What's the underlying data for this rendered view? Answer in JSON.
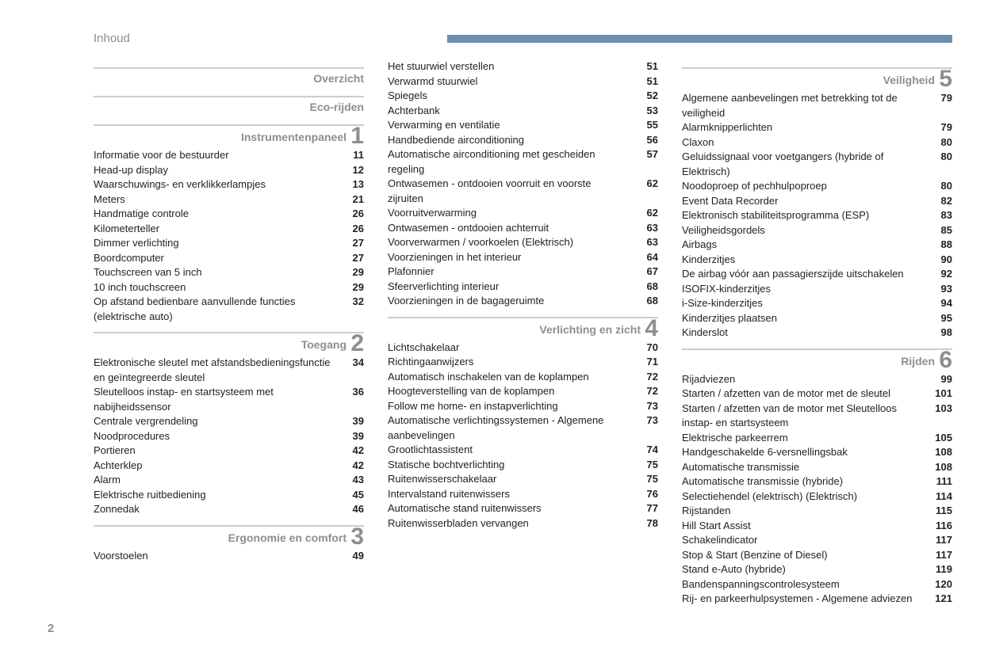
{
  "header": {
    "title": "Inhoud"
  },
  "page_number": "2",
  "colors": {
    "header_bar": "#6a8fb0",
    "muted": "#8a8f94",
    "rule": "#cccccc",
    "text": "#222222"
  },
  "col1": {
    "sections": [
      {
        "title": "Overzicht",
        "num": "",
        "items": []
      },
      {
        "title": "Eco-rijden",
        "num": "",
        "items": []
      },
      {
        "title": "Instrumentenpaneel",
        "num": "1",
        "items": [
          {
            "label": "Informatie voor de bestuurder",
            "pg": "11"
          },
          {
            "label": "Head-up display",
            "pg": "12"
          },
          {
            "label": "Waarschuwings- en verklikkerlampjes",
            "pg": "13"
          },
          {
            "label": "Meters",
            "pg": "21"
          },
          {
            "label": "Handmatige controle",
            "pg": "26"
          },
          {
            "label": "Kilometerteller",
            "pg": "26"
          },
          {
            "label": "Dimmer verlichting",
            "pg": "27"
          },
          {
            "label": "Boordcomputer",
            "pg": "27"
          },
          {
            "label": "Touchscreen van 5 inch",
            "pg": "29"
          },
          {
            "label": "10 inch touchscreen",
            "pg": "29"
          },
          {
            "label": "Op afstand bedienbare aanvullende functies (elektrische auto)",
            "pg": "32"
          }
        ]
      },
      {
        "title": "Toegang",
        "num": "2",
        "items": [
          {
            "label": "Elektronische sleutel met afstandsbedieningsfunctie en geïntegreerde sleutel",
            "pg": "34"
          },
          {
            "label": "Sleutelloos instap- en startsysteem met nabijheidssensor",
            "pg": "36"
          },
          {
            "label": "Centrale vergrendeling",
            "pg": "39"
          },
          {
            "label": "Noodprocedures",
            "pg": "39"
          },
          {
            "label": "Portieren",
            "pg": "42"
          },
          {
            "label": "Achterklep",
            "pg": "42"
          },
          {
            "label": "Alarm",
            "pg": "43"
          },
          {
            "label": "Elektrische ruitbediening",
            "pg": "45"
          },
          {
            "label": "Zonnedak",
            "pg": "46"
          }
        ]
      },
      {
        "title": "Ergonomie en comfort",
        "num": "3",
        "items": [
          {
            "label": "Voorstoelen",
            "pg": "49"
          }
        ]
      }
    ]
  },
  "col2": {
    "sections": [
      {
        "title": "",
        "num": "",
        "items": [
          {
            "label": "Het stuurwiel verstellen",
            "pg": "51"
          },
          {
            "label": "Verwarmd stuurwiel",
            "pg": "51"
          },
          {
            "label": "Spiegels",
            "pg": "52"
          },
          {
            "label": "Achterbank",
            "pg": "53"
          },
          {
            "label": "Verwarming en ventilatie",
            "pg": "55"
          },
          {
            "label": "Handbediende airconditioning",
            "pg": "56"
          },
          {
            "label": "Automatische airconditioning met gescheiden regeling",
            "pg": "57"
          },
          {
            "label": "Ontwasemen - ontdooien voorruit en voorste zijruiten",
            "pg": "62"
          },
          {
            "label": "Voorruitverwarming",
            "pg": "62"
          },
          {
            "label": "Ontwasemen - ontdooien achterruit",
            "pg": "63"
          },
          {
            "label": "Voorverwarmen / voorkoelen (Elektrisch)",
            "pg": "63"
          },
          {
            "label": "Voorzieningen in het interieur",
            "pg": "64"
          },
          {
            "label": "Plafonnier",
            "pg": "67"
          },
          {
            "label": "Sfeerverlichting interieur",
            "pg": "68"
          },
          {
            "label": "Voorzieningen in de bagageruimte",
            "pg": "68"
          }
        ]
      },
      {
        "title": "Verlichting en zicht",
        "num": "4",
        "items": [
          {
            "label": "Lichtschakelaar",
            "pg": "70"
          },
          {
            "label": "Richtingaanwijzers",
            "pg": "71"
          },
          {
            "label": "Automatisch inschakelen van de koplampen",
            "pg": "72"
          },
          {
            "label": "Hoogteverstelling van de koplampen",
            "pg": "72"
          },
          {
            "label": "Follow me home- en instapverlichting",
            "pg": "73"
          },
          {
            "label": "Automatische verlichtingssystemen - Algemene aanbevelingen",
            "pg": "73"
          },
          {
            "label": "Grootlichtassistent",
            "pg": "74"
          },
          {
            "label": "Statische bochtverlichting",
            "pg": "75"
          },
          {
            "label": "Ruitenwisserschakelaar",
            "pg": "75"
          },
          {
            "label": "Intervalstand ruitenwissers",
            "pg": "76"
          },
          {
            "label": "Automatische stand ruitenwissers",
            "pg": "77"
          },
          {
            "label": "Ruitenwisserbladen vervangen",
            "pg": "78"
          }
        ]
      }
    ]
  },
  "col3": {
    "sections": [
      {
        "title": "Veiligheid",
        "num": "5",
        "items": [
          {
            "label": "Algemene aanbevelingen met betrekking tot de veiligheid",
            "pg": "79"
          },
          {
            "label": "Alarmknipperlichten",
            "pg": "79"
          },
          {
            "label": "Claxon",
            "pg": "80"
          },
          {
            "label": "Geluidssignaal voor voetgangers (hybride of Elektrisch)",
            "pg": "80"
          },
          {
            "label": "Noodoproep of pechhulpoproep",
            "pg": "80"
          },
          {
            "label": "Event Data Recorder",
            "pg": "82"
          },
          {
            "label": "Elektronisch stabiliteitsprogramma (ESP)",
            "pg": "83"
          },
          {
            "label": "Veiligheidsgordels",
            "pg": "85"
          },
          {
            "label": "Airbags",
            "pg": "88"
          },
          {
            "label": "Kinderzitjes",
            "pg": "90"
          },
          {
            "label": "De airbag vóór aan passagierszijde uitschakelen",
            "pg": "92"
          },
          {
            "label": "ISOFIX-kinderzitjes",
            "pg": "93"
          },
          {
            "label": "i-Size-kinderzitjes",
            "pg": "94"
          },
          {
            "label": "Kinderzitjes plaatsen",
            "pg": "95"
          },
          {
            "label": "Kinderslot",
            "pg": "98"
          }
        ]
      },
      {
        "title": "Rijden",
        "num": "6",
        "items": [
          {
            "label": "Rijadviezen",
            "pg": "99"
          },
          {
            "label": "Starten / afzetten van de motor met de sleutel",
            "pg": "101"
          },
          {
            "label": "Starten / afzetten van de motor met Sleutelloos instap- en startsysteem",
            "pg": "103"
          },
          {
            "label": "Elektrische parkeerrem",
            "pg": "105"
          },
          {
            "label": "Handgeschakelde 6-versnellingsbak",
            "pg": "108"
          },
          {
            "label": "Automatische transmissie",
            "pg": "108"
          },
          {
            "label": "Automatische transmissie (hybride)",
            "pg": "111"
          },
          {
            "label": "Selectiehendel (elektrisch) (Elektrisch)",
            "pg": "114"
          },
          {
            "label": "Rijstanden",
            "pg": "115"
          },
          {
            "label": "Hill Start Assist",
            "pg": "116"
          },
          {
            "label": "Schakelindicator",
            "pg": "117"
          },
          {
            "label": "Stop & Start (Benzine of Diesel)",
            "pg": "117"
          },
          {
            "label": "Stand e-Auto (hybride)",
            "pg": "119"
          },
          {
            "label": "Bandenspanningscontrolesysteem",
            "pg": "120"
          },
          {
            "label": "Rij- en parkeerhulpsystemen - Algemene adviezen",
            "pg": "121"
          }
        ]
      }
    ]
  }
}
